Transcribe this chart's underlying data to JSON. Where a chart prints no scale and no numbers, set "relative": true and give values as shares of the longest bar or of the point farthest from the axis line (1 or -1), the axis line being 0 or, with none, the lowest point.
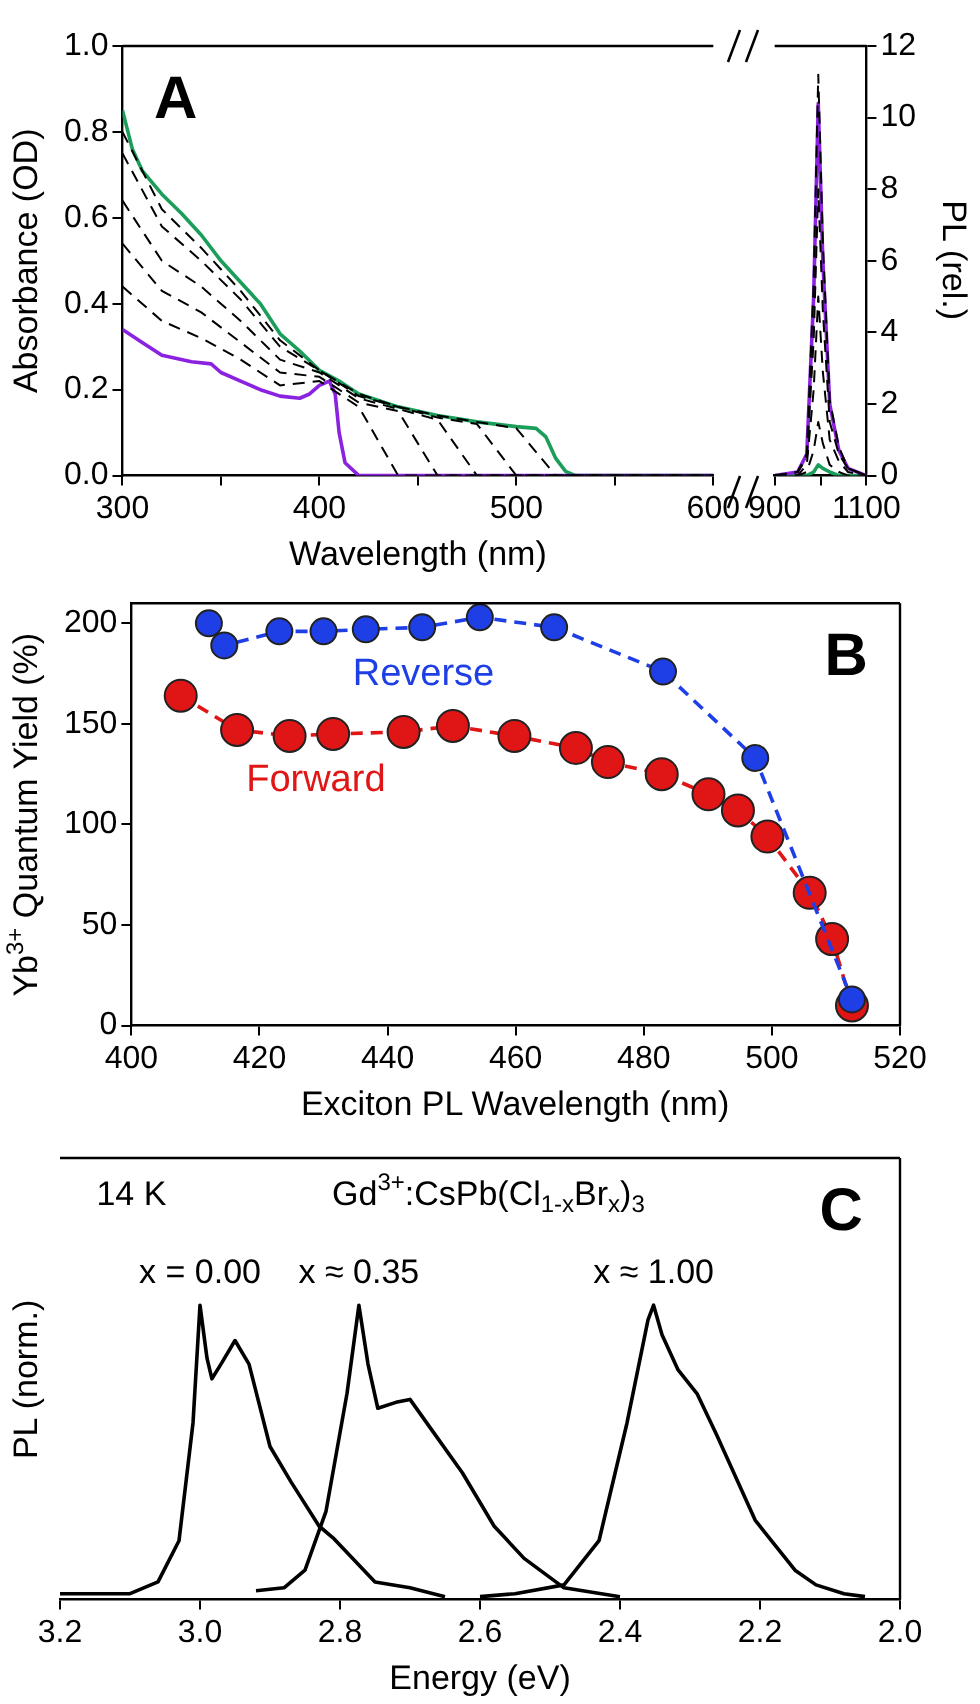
{
  "chart_data": [
    {
      "type": "line",
      "marker": "none",
      "annotations": [
        "A"
      ],
      "xlabel": "Wavelength (nm)",
      "ylabel": "Absorbance (OD)",
      "xlim": [
        300,
        600
      ],
      "xticks": [
        300,
        {
          "value": 350,
          "label": null
        },
        400,
        {
          "value": 450,
          "label": null
        },
        500,
        {
          "value": 550,
          "label": null
        },
        600
      ],
      "ylim": [
        0,
        1
      ],
      "yticks": [
        {
          "value": 0,
          "label": "0.0"
        },
        0.2,
        0.4,
        0.6,
        0.8,
        {
          "value": 1,
          "label": "1.0"
        }
      ],
      "series": [
        {
          "color": "#000000",
          "line_style": "dashed",
          "x": [
            300,
            320,
            340,
            360,
            380,
            400,
            420,
            440,
            460,
            480,
            500,
            520,
            600
          ],
          "values": [
            0.44,
            0.36,
            0.32,
            0.27,
            0.21,
            0.22,
            0.16,
            0,
            0,
            0,
            0,
            0,
            0
          ]
        },
        {
          "color": "#000000",
          "line_style": "dashed",
          "x": [
            300,
            320,
            340,
            360,
            380,
            400,
            420,
            440,
            460,
            480,
            500,
            520,
            600
          ],
          "values": [
            0.54,
            0.43,
            0.38,
            0.31,
            0.24,
            0.23,
            0.17,
            0.15,
            0,
            0,
            0,
            0,
            0
          ]
        },
        {
          "color": "#000000",
          "line_style": "dashed",
          "x": [
            300,
            320,
            340,
            360,
            380,
            400,
            420,
            440,
            460,
            480,
            500,
            520,
            600
          ],
          "values": [
            0.64,
            0.5,
            0.44,
            0.36,
            0.27,
            0.24,
            0.18,
            0.155,
            0.13,
            0,
            0,
            0,
            0
          ]
        },
        {
          "color": "#000000",
          "line_style": "dashed",
          "x": [
            300,
            320,
            340,
            360,
            380,
            400,
            420,
            440,
            460,
            480,
            500,
            520,
            600
          ],
          "values": [
            0.75,
            0.58,
            0.5,
            0.41,
            0.3,
            0.245,
            0.185,
            0.16,
            0.135,
            0.12,
            0,
            0,
            0
          ]
        },
        {
          "color": "#000000",
          "line_style": "dashed",
          "x": [
            300,
            320,
            340,
            360,
            380,
            400,
            420,
            440,
            460,
            480,
            500,
            520,
            600
          ],
          "values": [
            0.8,
            0.62,
            0.53,
            0.43,
            0.315,
            0.245,
            0.19,
            0.16,
            0.14,
            0.125,
            0.11,
            0,
            0
          ]
        },
        {
          "color": "#8b22e0",
          "line_style": "solid",
          "x": [
            300,
            310,
            320,
            335,
            345,
            350,
            360,
            370,
            380,
            390,
            395,
            400,
            405,
            408,
            410,
            413,
            420,
            600
          ],
          "values": [
            0.34,
            0.31,
            0.28,
            0.265,
            0.26,
            0.24,
            0.22,
            0.2,
            0.185,
            0.18,
            0.19,
            0.21,
            0.22,
            0.19,
            0.1,
            0.03,
            0,
            0
          ]
        },
        {
          "color": "#1a9e5a",
          "line_style": "solid",
          "x": [
            300,
            305,
            310,
            320,
            330,
            340,
            350,
            360,
            370,
            380,
            390,
            400,
            410,
            420,
            440,
            460,
            480,
            500,
            510,
            515,
            520,
            525,
            530,
            600
          ],
          "values": [
            0.85,
            0.76,
            0.71,
            0.655,
            0.61,
            0.56,
            0.5,
            0.45,
            0.4,
            0.33,
            0.29,
            0.245,
            0.22,
            0.19,
            0.16,
            0.14,
            0.125,
            0.114,
            0.11,
            0.09,
            0.04,
            0.01,
            0,
            0
          ]
        }
      ]
    },
    {
      "type": "line",
      "marker": "none",
      "y2label": "PL (rel.)",
      "xlim": [
        900,
        1100
      ],
      "xticks": [
        900,
        {
          "value": 1000,
          "label": null
        },
        1100
      ],
      "y2lim": [
        0,
        12
      ],
      "y2ticks": [
        0,
        2,
        4,
        6,
        8,
        10,
        12
      ],
      "x": [
        900,
        950,
        970,
        985,
        995,
        1005,
        1020,
        1040,
        1060,
        1100
      ],
      "series": [
        {
          "color": "#000000",
          "line_style": "dashed",
          "axis": "y2",
          "values": [
            0,
            0,
            0.1,
            0.7,
            1.5,
            0.9,
            0.3,
            0.1,
            0,
            0
          ]
        },
        {
          "color": "#000000",
          "line_style": "dashed",
          "axis": "y2",
          "values": [
            0,
            0,
            0.3,
            2.4,
            5,
            2.9,
            1,
            0.4,
            0.1,
            0
          ]
        },
        {
          "color": "#000000",
          "line_style": "dashed",
          "axis": "y2",
          "values": [
            0,
            0.1,
            0.5,
            3.8,
            8,
            4.6,
            1.5,
            0.6,
            0.2,
            0
          ]
        },
        {
          "color": "#000000",
          "line_style": "dashed",
          "axis": "y2",
          "values": [
            0,
            0.1,
            0.6,
            5.4,
            11.2,
            6.5,
            2.1,
            0.8,
            0.2,
            0
          ]
        },
        {
          "color": "#8b22e0",
          "line_style": "solid",
          "axis": "y2",
          "values": [
            0,
            0.1,
            0.6,
            5,
            10.4,
            6,
            2,
            0.7,
            0.2,
            0
          ]
        },
        {
          "color": "#1a9e5a",
          "line_style": "solid",
          "axis": "y2",
          "values": [
            0,
            0,
            0,
            0.1,
            0.3,
            0.2,
            0.1,
            0,
            0,
            0
          ]
        }
      ]
    },
    {
      "type": "line",
      "marker": "circle",
      "line_style": "dashed",
      "annotations": [
        "B"
      ],
      "xlabel": "Exciton PL Wavelength (nm)",
      "ylabel": "Yb$^{3+}$ Quantum Yield (%)",
      "xlim": [
        400,
        520
      ],
      "xticks": [
        400,
        420,
        440,
        460,
        480,
        500,
        520
      ],
      "ylim": [
        0,
        210
      ],
      "yticks": [
        0,
        50,
        100,
        150,
        200
      ],
      "series": [
        {
          "name": "Reverse",
          "color": "#1f3fe6",
          "x": [
            412.1,
            414.5,
            423.1,
            430,
            436.6,
            445.4,
            454.4,
            466,
            483,
            497.4,
            512.5
          ],
          "values": [
            200,
            189,
            196,
            196,
            197,
            198,
            203,
            198,
            176,
            133,
            13
          ]
        },
        {
          "name": "Forward",
          "color": "#e01515",
          "x": [
            407.7,
            416.5,
            424.7,
            431.5,
            442.5,
            450.2,
            459.8,
            469.4,
            474.4,
            482.8,
            490.1,
            494.7,
            499.3,
            505.9,
            509.4,
            512.5
          ],
          "values": [
            164,
            147,
            144,
            145,
            146,
            149,
            144,
            138,
            131,
            125,
            115,
            107,
            94,
            66,
            43,
            10
          ]
        }
      ]
    },
    {
      "type": "line",
      "marker": "none",
      "relative": true,
      "annotations": [
        "14 K",
        "Gd$^{3+}$:CsPb(Cl$_{1-x}$Br$_{x}$)$_{3}$",
        "C"
      ],
      "xlabel": "Energy (eV)",
      "ylabel": "PL (norm.)",
      "xlim": [
        3.2,
        2.0
      ],
      "xticks": [
        3.2,
        {
          "value": 3,
          "label": "3.0"
        },
        2.8,
        2.6,
        2.4,
        2.2,
        {
          "value": 2,
          "label": "2.0"
        }
      ],
      "series": [
        {
          "name": "x = 0.00",
          "color": "#000000",
          "x": [
            3.2,
            3.1,
            3.06,
            3.03,
            3.01,
            3.0,
            2.99,
            2.983,
            2.97,
            2.95,
            2.93,
            2.9,
            2.87,
            2.83,
            2.81,
            2.75,
            2.7,
            2.65
          ],
          "values": [
            0.02,
            0.02,
            0.06,
            0.2,
            0.6,
            1,
            0.82,
            0.75,
            0.8,
            0.88,
            0.8,
            0.52,
            0.4,
            0.25,
            0.21,
            0.06,
            0.04,
            0.01
          ]
        },
        {
          "name": "x ≈ 0.35",
          "color": "#000000",
          "x": [
            2.92,
            2.88,
            2.85,
            2.82,
            2.79,
            2.773,
            2.76,
            2.746,
            2.72,
            2.7,
            2.67,
            2.625,
            2.58,
            2.537,
            2.48,
            2.4
          ],
          "values": [
            0.03,
            0.04,
            0.1,
            0.3,
            0.7,
            1,
            0.8,
            0.65,
            0.67,
            0.68,
            0.58,
            0.43,
            0.25,
            0.14,
            0.04,
            0.01
          ]
        },
        {
          "name": "x ≈ 1.00",
          "color": "#000000",
          "x": [
            2.6,
            2.55,
            2.48,
            2.43,
            2.39,
            2.36,
            2.352,
            2.34,
            2.317,
            2.29,
            2.262,
            2.207,
            2.15,
            2.12,
            2.08,
            2.05
          ],
          "values": [
            0.01,
            0.02,
            0.05,
            0.2,
            0.6,
            0.95,
            1,
            0.9,
            0.78,
            0.7,
            0.56,
            0.27,
            0.1,
            0.05,
            0.02,
            0.01
          ]
        }
      ]
    }
  ]
}
